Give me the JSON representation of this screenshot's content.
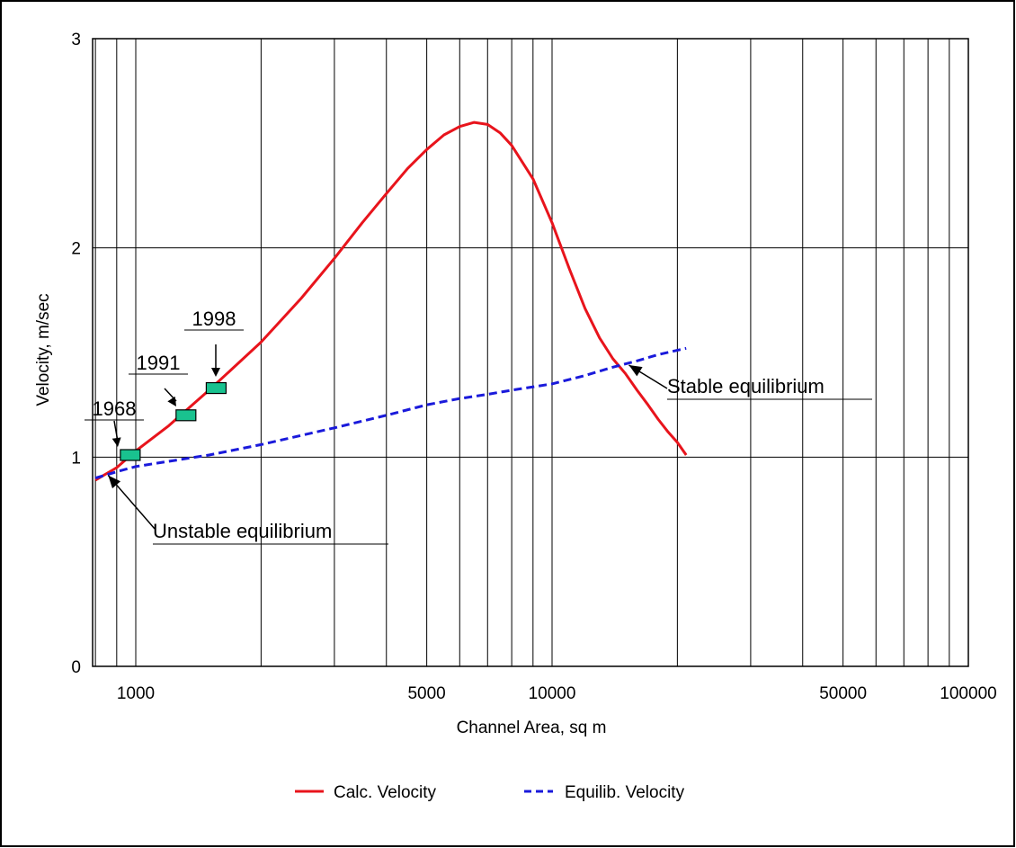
{
  "chart_data": {
    "type": "line",
    "xlabel": "Channel Area, sq m",
    "ylabel": "Velocity, m/sec",
    "x_scale": "log",
    "xlim": [
      800,
      100000
    ],
    "ylim": [
      0,
      3
    ],
    "grid": true,
    "x_tick_labels": [
      {
        "value": 1000,
        "label": "1000"
      },
      {
        "value": 5000,
        "label": "5000"
      },
      {
        "value": 10000,
        "label": "10000"
      },
      {
        "value": 50000,
        "label": "50000"
      },
      {
        "value": 100000,
        "label": "100000"
      }
    ],
    "y_tick_labels": [
      {
        "value": 0,
        "label": "0"
      },
      {
        "value": 1,
        "label": "1"
      },
      {
        "value": 2,
        "label": "2"
      },
      {
        "value": 3,
        "label": "3"
      }
    ],
    "legend_position": "bottom",
    "series": [
      {
        "name": "Calc. Velocity",
        "color": "#e8141c",
        "dash": "solid",
        "points": [
          [
            800,
            0.89
          ],
          [
            900,
            0.95
          ],
          [
            1000,
            1.03
          ],
          [
            1200,
            1.15
          ],
          [
            1500,
            1.32
          ],
          [
            2000,
            1.55
          ],
          [
            2500,
            1.76
          ],
          [
            3000,
            1.95
          ],
          [
            3500,
            2.12
          ],
          [
            4000,
            2.26
          ],
          [
            4500,
            2.38
          ],
          [
            5000,
            2.47
          ],
          [
            5500,
            2.54
          ],
          [
            6000,
            2.58
          ],
          [
            6500,
            2.6
          ],
          [
            7000,
            2.59
          ],
          [
            7500,
            2.55
          ],
          [
            8000,
            2.49
          ],
          [
            9000,
            2.33
          ],
          [
            10000,
            2.12
          ],
          [
            11000,
            1.9
          ],
          [
            12000,
            1.71
          ],
          [
            13000,
            1.57
          ],
          [
            14000,
            1.47
          ],
          [
            15000,
            1.4
          ],
          [
            16000,
            1.32
          ],
          [
            17000,
            1.25
          ],
          [
            18000,
            1.18
          ],
          [
            19000,
            1.12
          ],
          [
            20000,
            1.07
          ],
          [
            21000,
            1.01
          ]
        ]
      },
      {
        "name": "Equilib. Velocity",
        "color": "#1a1adb",
        "dash": "dashed",
        "points": [
          [
            800,
            0.9
          ],
          [
            900,
            0.93
          ],
          [
            1000,
            0.955
          ],
          [
            1200,
            0.98
          ],
          [
            1500,
            1.01
          ],
          [
            2000,
            1.06
          ],
          [
            3000,
            1.14
          ],
          [
            4000,
            1.2
          ],
          [
            5000,
            1.25
          ],
          [
            6000,
            1.28
          ],
          [
            7000,
            1.3
          ],
          [
            8000,
            1.32
          ],
          [
            10000,
            1.35
          ],
          [
            12000,
            1.39
          ],
          [
            14000,
            1.43
          ],
          [
            16000,
            1.46
          ],
          [
            18000,
            1.49
          ],
          [
            21000,
            1.52
          ]
        ]
      }
    ],
    "markers": {
      "color": "#19c28f",
      "points": [
        {
          "label": "1968",
          "x": 970,
          "y": 1.01
        },
        {
          "label": "1991",
          "x": 1320,
          "y": 1.2
        },
        {
          "label": "1998",
          "x": 1560,
          "y": 1.33
        }
      ]
    },
    "annotations": [
      {
        "text": "Stable equilibrium",
        "x": 15000,
        "y": 1.44
      },
      {
        "text": "Unstable equilibrium",
        "x": 850,
        "y": 0.93
      }
    ]
  }
}
